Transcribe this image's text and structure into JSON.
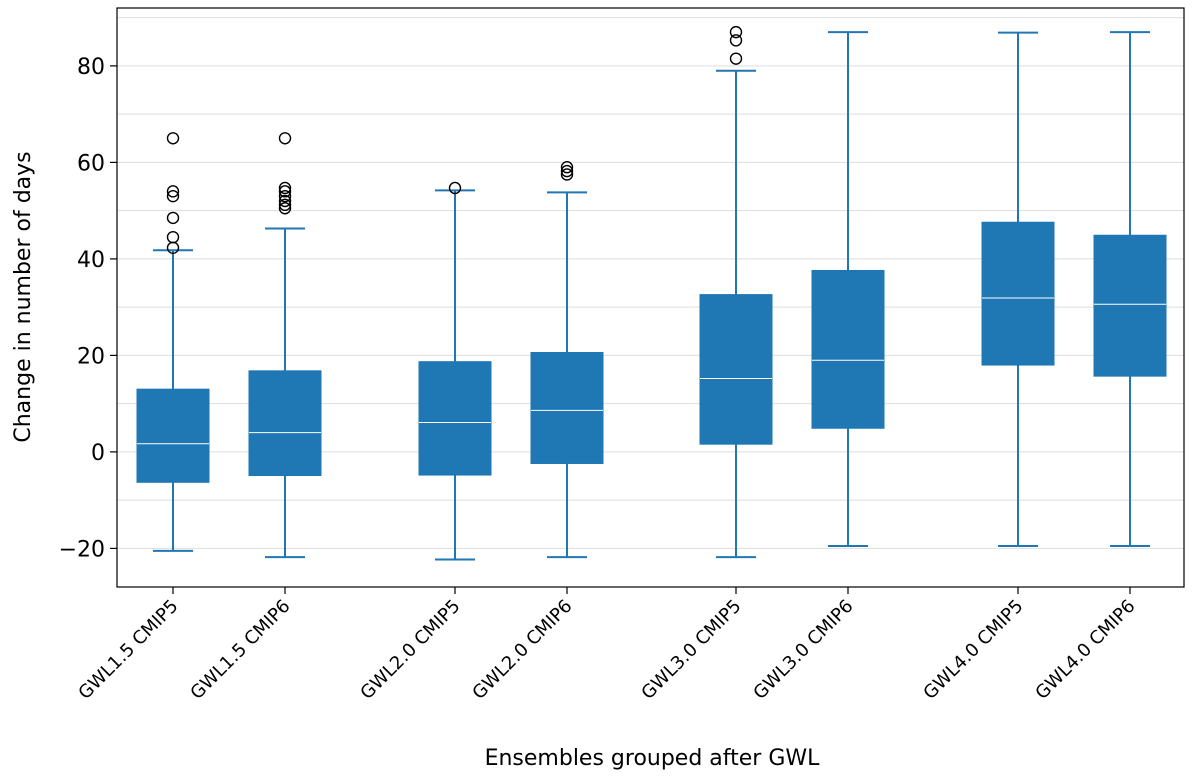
{
  "chart_data": {
    "type": "boxplot",
    "xlabel": "Ensembles grouped after GWL",
    "ylabel": "Change in number of days",
    "ylim": [
      -28,
      92
    ],
    "yticks": [
      -20,
      0,
      20,
      40,
      60,
      80
    ],
    "grid": "horizontal",
    "box_color": "#1f77b4",
    "median_color": "#ffffff",
    "categories": [
      "GWL1.5 CMIP5",
      "GWL1.5 CMIP6",
      "GWL2.0 CMIP5",
      "GWL2.0 CMIP6",
      "GWL3.0 CMIP5",
      "GWL3.0 CMIP6",
      "GWL4.0 CMIP5",
      "GWL4.0 CMIP6"
    ],
    "boxes": [
      {
        "whisker_low": -20.5,
        "q1": -6.3,
        "median": 1.7,
        "q3": 13.0,
        "whisker_high": 41.8,
        "outliers": [
          42.3,
          44.5,
          48.5,
          53.0,
          54.0,
          65.0
        ]
      },
      {
        "whisker_low": -21.8,
        "q1": -4.9,
        "median": 4.0,
        "q3": 16.8,
        "whisker_high": 46.3,
        "outliers": [
          50.5,
          51.2,
          52.0,
          53.0,
          54.0,
          54.7,
          65.0
        ]
      },
      {
        "whisker_low": -22.3,
        "q1": -4.8,
        "median": 6.1,
        "q3": 18.7,
        "whisker_high": 54.2,
        "outliers": [
          54.7
        ]
      },
      {
        "whisker_low": -21.8,
        "q1": -2.4,
        "median": 8.6,
        "q3": 20.6,
        "whisker_high": 53.8,
        "outliers": [
          57.5,
          58.2,
          59.0
        ]
      },
      {
        "whisker_low": -21.8,
        "q1": 1.6,
        "median": 15.2,
        "q3": 32.6,
        "whisker_high": 79.0,
        "outliers": [
          81.5,
          85.3,
          87.0
        ]
      },
      {
        "whisker_low": -19.5,
        "q1": 4.9,
        "median": 19.0,
        "q3": 37.6,
        "whisker_high": 87.0,
        "outliers": []
      },
      {
        "whisker_low": -19.5,
        "q1": 18.0,
        "median": 31.9,
        "q3": 47.6,
        "whisker_high": 86.9,
        "outliers": []
      },
      {
        "whisker_low": -19.5,
        "q1": 15.7,
        "median": 30.6,
        "q3": 44.9,
        "whisker_high": 87.0,
        "outliers": []
      }
    ]
  }
}
